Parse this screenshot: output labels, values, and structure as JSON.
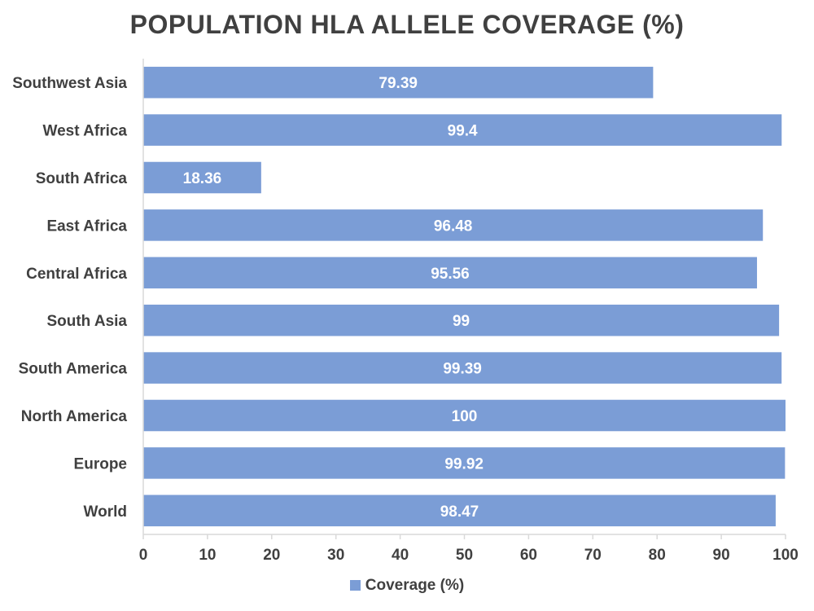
{
  "chart_data": {
    "type": "bar",
    "orientation": "horizontal",
    "title": "POPULATION HLA ALLELE COVERAGE (%)",
    "xlabel": "",
    "ylabel": "",
    "categories": [
      "Southwest Asia",
      "West Africa",
      "South Africa",
      "East Africa",
      "Central Africa",
      "South Asia",
      "South America",
      "North America",
      "Europe",
      "World"
    ],
    "series": [
      {
        "name": "Coverage (%)",
        "color": "#7b9dd6",
        "values": [
          79.39,
          99.4,
          18.36,
          96.48,
          95.56,
          99,
          99.39,
          100,
          99.92,
          98.47
        ],
        "labels": [
          "79.39",
          "99.4",
          "18.36",
          "96.48",
          "95.56",
          "99",
          "99.39",
          "100",
          "99.92",
          "98.47"
        ]
      }
    ],
    "xlim": [
      0,
      100
    ],
    "xticks": [
      "0",
      "10",
      "20",
      "30",
      "40",
      "50",
      "60",
      "70",
      "80",
      "90",
      "100"
    ],
    "grid": false,
    "legend_position": "bottom"
  }
}
